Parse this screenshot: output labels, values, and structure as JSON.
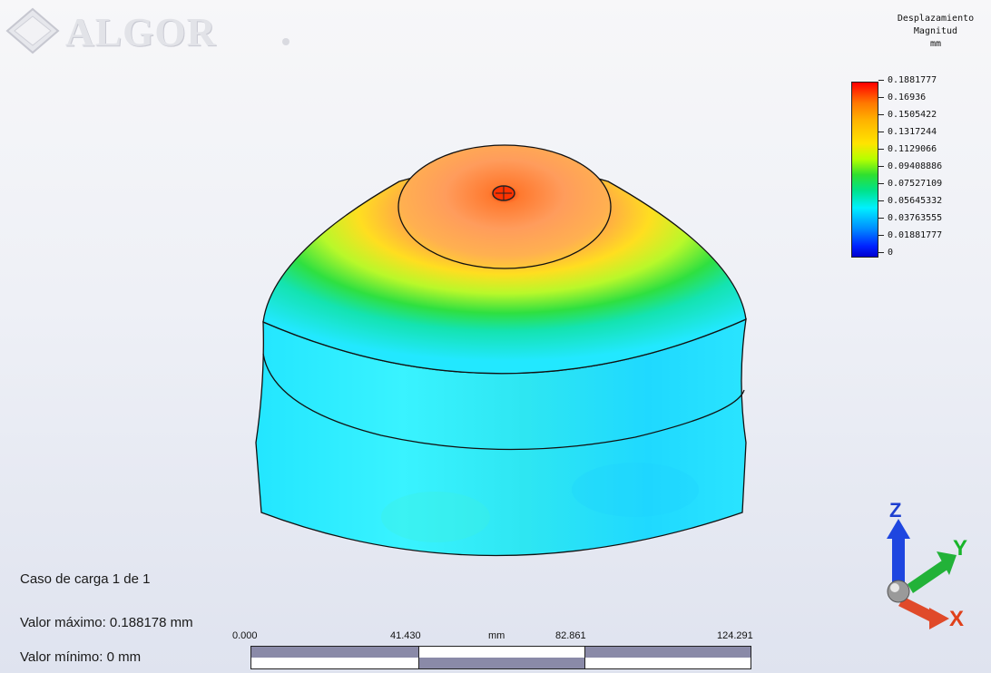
{
  "logo": {
    "text": "ALGOR"
  },
  "legend": {
    "title_line1": "Desplazamiento",
    "title_line2": "Magnitud",
    "unit": "mm",
    "values": [
      "0.1881777",
      "0.16936",
      "0.1505422",
      "0.1317244",
      "0.1129066",
      "0.09408886",
      "0.07527109",
      "0.05645332",
      "0.03763555",
      "0.01881777",
      "0"
    ]
  },
  "info": {
    "load_case": "Caso de carga  1 de 1",
    "max_value": "Valor máximo: 0.188178 mm",
    "min_value": "Valor mínimo: 0 mm"
  },
  "scale": {
    "labels": [
      "0.000",
      "41.430",
      "mm",
      "82.861",
      "124.291"
    ]
  },
  "triad": {
    "z": "Z",
    "y": "Y",
    "x": "X"
  },
  "colors": {
    "max": "#ff1a00",
    "min": "#0000d0",
    "mid": "#2fe02f"
  }
}
